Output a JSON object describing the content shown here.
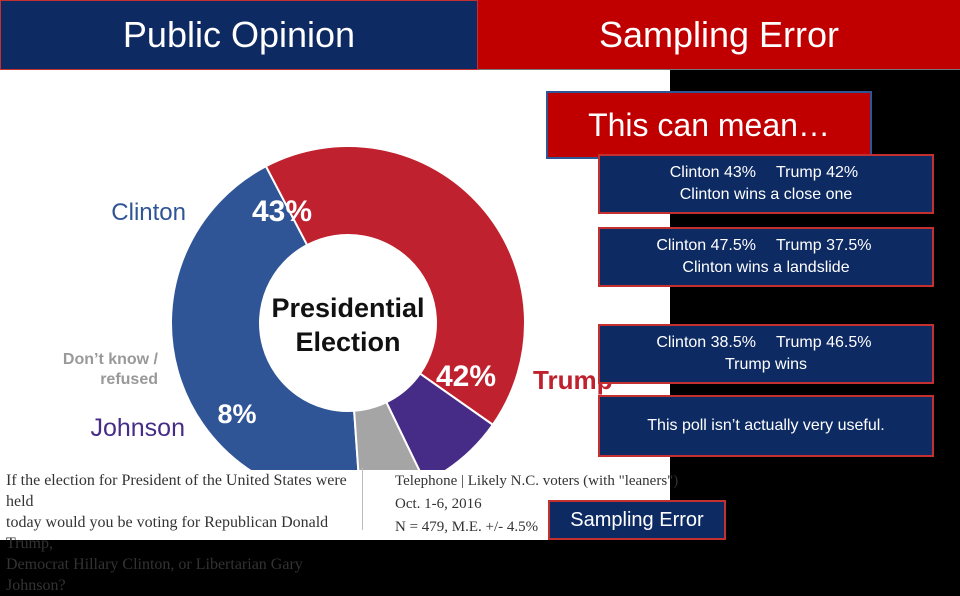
{
  "slide": {
    "title_left": "Public Opinion",
    "title_right": "Sampling Error",
    "callout": "This can mean…",
    "scenarios": [
      {
        "clinton": "Clinton 43%",
        "trump": "Trump 42%",
        "outcome": "Clinton wins a close one"
      },
      {
        "clinton": "Clinton 47.5%",
        "trump": "Trump 37.5%",
        "outcome": "Clinton wins a landslide"
      },
      {
        "clinton": "Clinton 38.5%",
        "trump": "Trump 46.5%",
        "outcome": "Trump wins"
      }
    ],
    "conclusion": "This poll isn’t actually very useful.",
    "sampling_error_button": "Sampling Error"
  },
  "poll": {
    "question_lines": [
      "If the election for President of the United States were held",
      "today would you be voting for Republican Donald Trump,",
      "Democrat Hillary Clinton, or Libertarian Gary Johnson?"
    ],
    "method": "Telephone | Likely N.C. voters (with \"leaners\")",
    "dates": "Oct. 1-6, 2016",
    "sample": "N = 479, M.E. +/- 4.5%"
  },
  "chart_data": {
    "type": "pie",
    "title": "Presidential Election",
    "title_lines": [
      "Presidential",
      "Election"
    ],
    "slices": [
      {
        "label": "Clinton",
        "value": 43,
        "value_label": "43%",
        "color": "#2f5597"
      },
      {
        "label": "Trump",
        "value": 42,
        "value_label": "42%",
        "color": "#c0212e"
      },
      {
        "label": "Johnson",
        "value": 8,
        "value_label": "8%",
        "color": "#472c87"
      },
      {
        "label": "Don’t know / refused",
        "label_lines": [
          "Don’t know /",
          "refused"
        ],
        "value": 6,
        "value_label": "6%",
        "color": "#a5a5a5"
      }
    ]
  }
}
